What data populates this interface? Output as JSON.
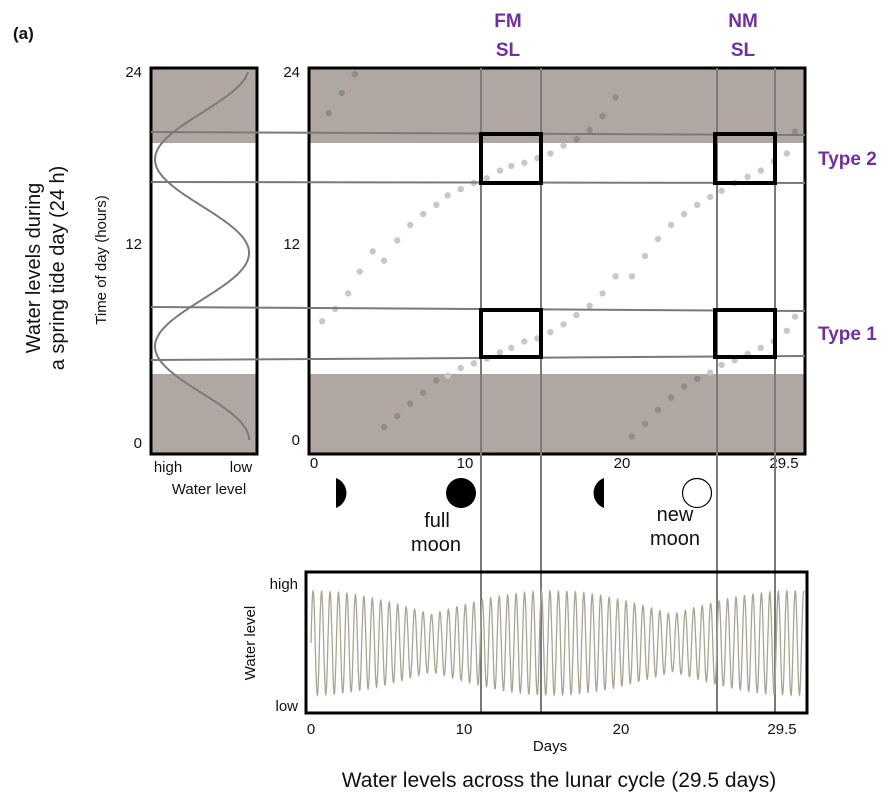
{
  "panel_label": "(a)",
  "left_plot": {
    "outer_label_line1": "Water levels during",
    "outer_label_line2": "a spring tide day (24 h)",
    "ylabel": "Time of day (hours)",
    "yticks": [
      "0",
      "12",
      "24"
    ],
    "xtick_left": "high",
    "xtick_right": "low",
    "xlabel": "Water level"
  },
  "main_plot": {
    "yticks": [
      "0",
      "12",
      "24"
    ],
    "xticks": [
      "0",
      "10",
      "20",
      "29.5"
    ],
    "top_labels": [
      {
        "line1": "FM",
        "line2": "SL"
      },
      {
        "line1": "NM",
        "line2": "SL"
      }
    ],
    "type_labels": [
      "Type 2",
      "Type 1"
    ],
    "accent_color": "#7030a0",
    "shade_color": "#b1a7a2"
  },
  "moon_labels": {
    "full_line1": "full",
    "full_line2": "moon",
    "new_line1": "new",
    "new_line2": "moon"
  },
  "bottom_plot": {
    "ylabel": "Water level",
    "ytick_high": "high",
    "ytick_low": "low",
    "xticks": [
      "0",
      "10",
      "20",
      "29.5"
    ],
    "xlabel": "Days",
    "caption": "Water levels across the lunar cycle (29.5 days)"
  },
  "chart_data": [
    {
      "type": "line",
      "title": "",
      "xlabel": "Water level",
      "ylabel": "Time of day (hours)",
      "ylim": [
        0,
        24
      ],
      "note_axes": "x axis runs from high (left) to low (right)",
      "shaded_time_bands_hours": [
        [
          0,
          4.1
        ],
        [
          19.2,
          24
        ]
      ],
      "series": [
        {
          "values_desc": "semidiurnal tide: low water near 0, 12, 24 h; high water near 6.2 and 18.5 h"
        }
      ]
    },
    {
      "type": "scatter",
      "xlabel": "",
      "ylabel": "",
      "xlim": [
        0,
        29.5
      ],
      "ylim": [
        0,
        24
      ],
      "shaded_time_bands_hours": [
        [
          0,
          4.1
        ],
        [
          19.2,
          24
        ]
      ],
      "horizontal_lines_hours": [
        20.1,
        16.6,
        8.3,
        5.2
      ],
      "vertical_lines_days": [
        10.9,
        14.6,
        26.0,
        29.2
      ],
      "boxes": [
        {
          "label": "Type 2",
          "x": [
            10.9,
            14.6
          ],
          "y": [
            16.6,
            20.1
          ]
        },
        {
          "label": "Type 2",
          "x": [
            26.0,
            29.2
          ],
          "y": [
            16.6,
            20.1
          ]
        },
        {
          "label": "Type 1",
          "x": [
            10.9,
            14.6
          ],
          "y": [
            5.2,
            8.3
          ]
        },
        {
          "label": "Type 1",
          "x": [
            26.0,
            29.2
          ],
          "y": [
            5.2,
            8.3
          ]
        }
      ],
      "series": [
        {
          "x": [
            0.5,
            1.3,
            2.1,
            2.8,
            3.6
          ],
          "y": [
            7.7,
            8.5,
            9.5,
            10.9,
            12.2
          ]
        },
        {
          "x": [
            0.9,
            1.7,
            2.5
          ],
          "y": [
            21.1,
            22.4,
            23.6
          ]
        },
        {
          "x": [
            4.3,
            5.1,
            5.9,
            6.7,
            7.5,
            8.2,
            9.0,
            9.8,
            10.6,
            11.4,
            12.1,
            12.9,
            13.7,
            14.5,
            15.3,
            16.1,
            16.9,
            17.7,
            18.5
          ],
          "y": [
            0.9,
            1.6,
            2.4,
            3.1,
            3.9,
            4.2,
            4.7,
            5.0,
            5.3,
            5.7,
            6.0,
            6.4,
            6.6,
            7.0,
            7.5,
            8.1,
            8.7,
            9.5,
            10.6
          ]
        },
        {
          "x": [
            4.3,
            5.1,
            5.9,
            6.7,
            7.5,
            8.2,
            9.0,
            9.8,
            10.6,
            11.4,
            12.1,
            12.9,
            13.7,
            14.5,
            15.3,
            16.1,
            16.9,
            17.7,
            18.5
          ],
          "y": [
            11.6,
            12.9,
            13.9,
            14.6,
            15.2,
            15.8,
            16.2,
            16.6,
            16.9,
            17.4,
            17.7,
            17.9,
            18.2,
            18.5,
            19.0,
            19.4,
            20.0,
            20.9,
            22.1
          ]
        },
        {
          "x": [
            19.5,
            20.3,
            21.1,
            21.9,
            22.7,
            23.5,
            24.3,
            25.0,
            25.8,
            26.6,
            27.4,
            28.2,
            29.0,
            29.5
          ],
          "y": [
            0.3,
            1.1,
            2.0,
            2.8,
            3.5,
            4.0,
            4.4,
            4.9,
            5.2,
            5.6,
            6.0,
            6.4,
            7.1,
            8.0
          ]
        },
        {
          "x": [
            19.5,
            20.3,
            21.1,
            21.9,
            22.7,
            23.5,
            24.3,
            25.0,
            25.8,
            26.6,
            27.4,
            28.2,
            29.0,
            29.5
          ],
          "y": [
            10.6,
            11.9,
            13.0,
            13.9,
            14.6,
            15.2,
            15.7,
            16.1,
            16.6,
            17.0,
            17.4,
            18.0,
            18.5,
            19.9
          ]
        }
      ]
    },
    {
      "type": "line",
      "xlabel": "Days",
      "ylabel": "Water level",
      "xlim": [
        0,
        29.5
      ],
      "xticks": [
        0,
        10,
        20,
        29.5
      ],
      "ytick_labels": [
        "low",
        "high"
      ],
      "series": [
        {
          "values_desc": "semidiurnal tide oscillation; amplitude maximal near days 0, 14.8, 29.5 (spring tides), minimal near days 7.4 and 22.1 (neap tides)"
        }
      ]
    }
  ]
}
